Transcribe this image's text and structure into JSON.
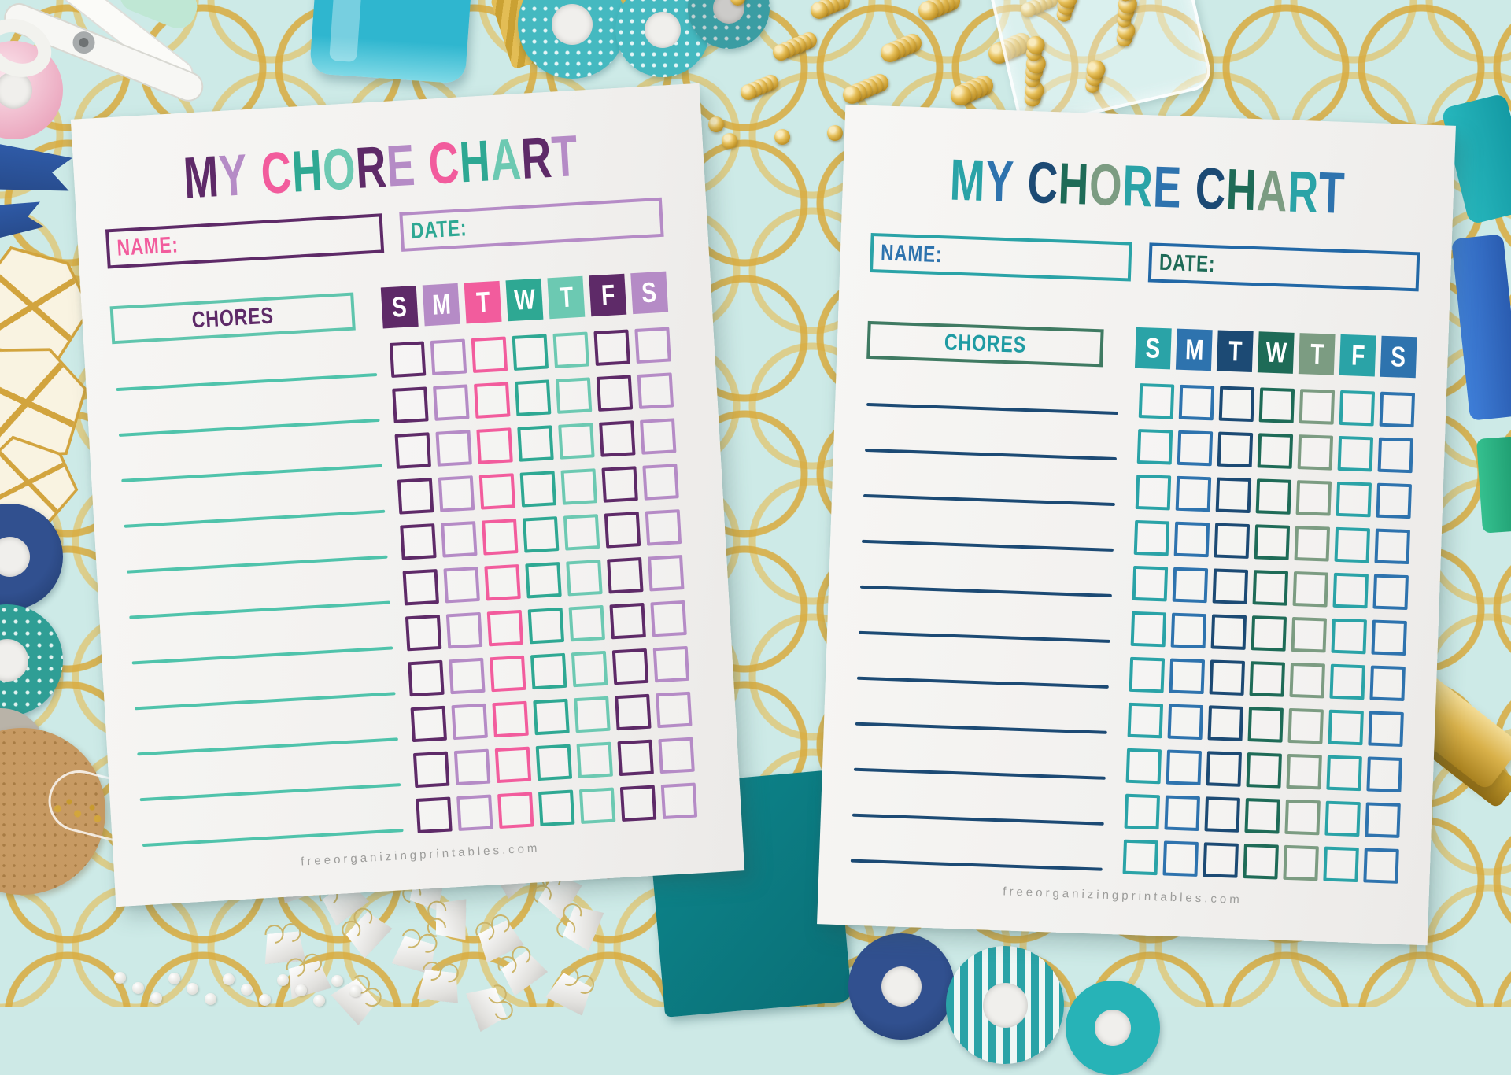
{
  "background": {
    "base_color": "#cdeae7",
    "gold_pattern_color": "#d8ab3e",
    "paper_color": "#f3f2f0"
  },
  "footer_url": "freeorganizingprintables.com",
  "charts": [
    {
      "side": "left",
      "title": "MY CHORE CHART",
      "title_letter_colors": [
        "#5E2A68",
        "#B58BC6",
        "#F25C9D",
        "#2EA893",
        "#6CC9B2",
        "#5E2A68",
        "#B58BC6",
        "#F25C9D",
        "#2EA893",
        "#6CC9B2",
        "#5E2A68",
        "#B58BC6"
      ],
      "name_label": "NAME:",
      "date_label": "DATE:",
      "chores_label": "CHORES",
      "days": [
        "S",
        "M",
        "T",
        "W",
        "T",
        "F",
        "S"
      ],
      "day_colors": [
        "#5E2A68",
        "#B58BC6",
        "#F25C9D",
        "#2EA893",
        "#6CC9B2",
        "#5E2A68",
        "#B58BC6"
      ],
      "grid_rows": 11,
      "grid_columns": 7,
      "colors": {
        "name_label": "#F25C9D",
        "name_box_border": "#5E2A68",
        "date_label": "#2EA893",
        "date_box_border": "#B58BC6",
        "chores_label": "#5E2A68",
        "chores_box_border": "#5FC5AD",
        "chore_line": "#4FC3AB",
        "footer_text": "#9C9C9A"
      }
    },
    {
      "side": "right",
      "title": "MY CHORE CHART",
      "title_letter_colors": [
        "#2AA3A7",
        "#2E73AE",
        "#1C4A74",
        "#1E6B57",
        "#7C9C82",
        "#2AA3A7",
        "#2E73AE",
        "#1C4A74",
        "#1E6B57",
        "#7C9C82",
        "#2AA3A7",
        "#2E73AE"
      ],
      "name_label": "NAME:",
      "date_label": "DATE:",
      "chores_label": "CHORES",
      "days": [
        "S",
        "M",
        "T",
        "W",
        "T",
        "F",
        "S"
      ],
      "day_colors": [
        "#2AA3A7",
        "#2E73AE",
        "#1C4A74",
        "#1E6B57",
        "#7C9C82",
        "#2AA3A7",
        "#2E73AE"
      ],
      "grid_rows": 11,
      "grid_columns": 7,
      "colors": {
        "name_label": "#2E73AE",
        "name_box_border": "#2AA3A7",
        "date_label": "#1E6B57",
        "date_box_border": "#2268A6",
        "chores_label": "#1F9BA3",
        "chores_box_border": "#3F7A62",
        "chore_line": "#1C4A74",
        "footer_text": "#9C9C9A"
      }
    }
  ],
  "scene_objects": [
    "scissors",
    "pink-washi-roll",
    "teal-stapler",
    "gold-washi-piece",
    "sequin-washi-rolls",
    "gold-push-pins",
    "push-pin-jar",
    "blue-clothespins",
    "gold-geometric-ornaments",
    "washi-rolls",
    "cork-coaster",
    "glass-glitter-tube",
    "binder-clip-pile",
    "white-sequin-string",
    "teal-notebook",
    "bottom-washi-rolls",
    "gold-stapler",
    "pens"
  ]
}
